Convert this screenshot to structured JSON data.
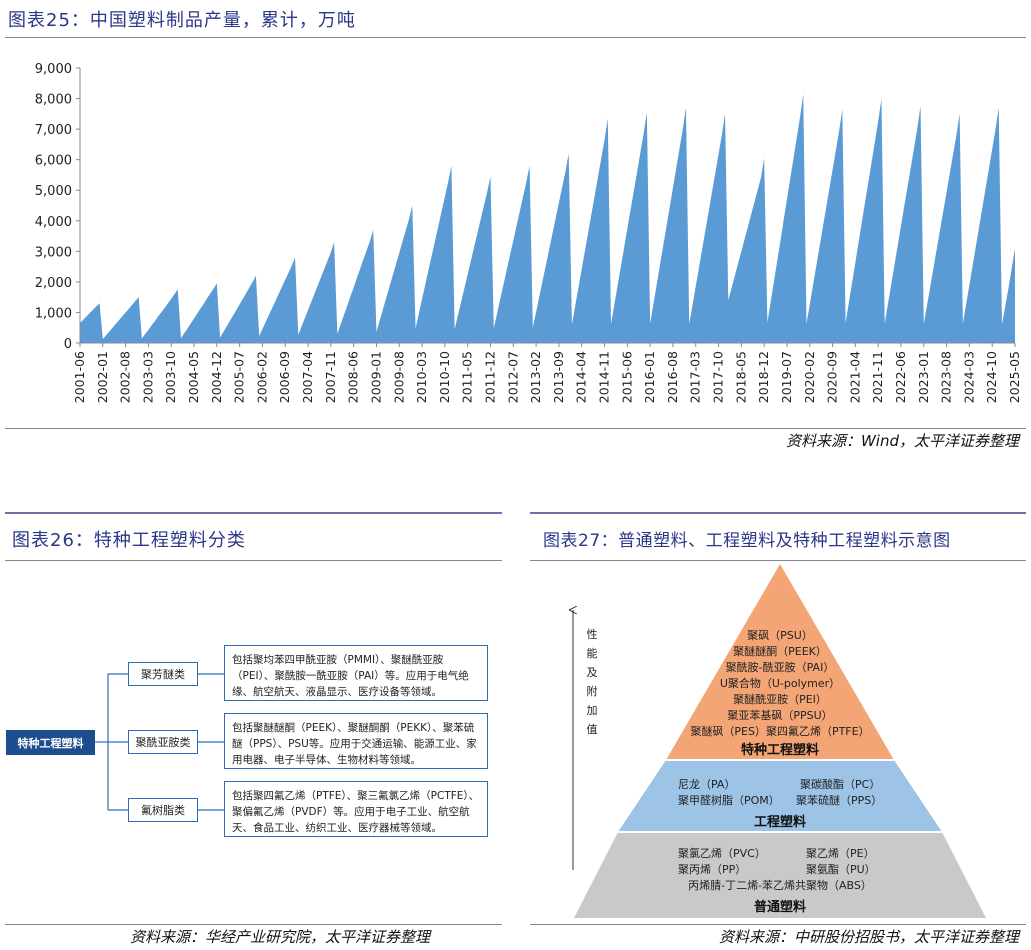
{
  "fig25": {
    "title": "图表25：中国塑料制品产量，累计，万吨",
    "source": "资料来源：Wind，太平洋证券整理"
  },
  "fig26": {
    "title": "图表26：特种工程塑料分类",
    "root": "特种工程塑料",
    "categories": [
      {
        "label": "聚芳醚类",
        "desc": "包括聚均苯四甲酰亚胺（PMMI）、聚醚酰亚胺（PEI）、聚酰胺一酰亚胺（PAI）等。应用于电气绝缘、航空航天、液晶显示、医疗设备等领域。"
      },
      {
        "label": "聚酰亚胺类",
        "desc": "包括聚醚醚酮（PEEK）、聚醚酮酮（PEKK）、聚苯硫醚（PPS）、PSU等。应用于交通运输、能源工业、家用电器、电子半导体、生物材料等领域。"
      },
      {
        "label": "氟树脂类",
        "desc": "包括聚四氟乙烯（PTFE）、聚三氟氯乙烯（PCTFE）、聚偏氟乙烯（PVDF）等。应用于电子工业、航空航天、食品工业、纺织工业、医疗器械等领域。"
      }
    ],
    "source": "资料来源：华经产业研究院，太平洋证券整理"
  },
  "fig27": {
    "title": "图表27：普通塑料、工程塑料及特种工程塑料示意图",
    "axis_label": "性能及附加值",
    "tiers": [
      {
        "name": "特种工程塑料",
        "color": "#f4a575",
        "items": [
          "聚砜（PSU）",
          "聚醚醚酮（PEEK）",
          "聚酰胺-酰亚胺（PAI）",
          "U聚合物（U-polymer）",
          "聚醚酰亚胺（PEI）",
          "聚亚苯基砜（PPSU）",
          "聚醚砜（PES）聚四氟乙烯（PTFE）"
        ]
      },
      {
        "name": "工程塑料",
        "color": "#9dc3e6",
        "items": [
          "尼龙（PA）",
          "聚碳酸酯（PC）",
          "聚甲醛树脂（POM）",
          "聚苯硫醚（PPS）"
        ]
      },
      {
        "name": "普通塑料",
        "color": "#c9c9c9",
        "items": [
          "聚氯乙烯（PVC）",
          "聚乙烯（PE）",
          "聚丙烯（PP）",
          "聚氨酯（PU）",
          "丙烯腈-丁二烯-苯乙烯共聚物（ABS）"
        ]
      }
    ],
    "source": "资料来源：中研股份招股书，太平洋证券整理"
  },
  "chart_data": {
    "type": "area",
    "title": "中国塑料制品产量，累计，万吨",
    "xlabel": "",
    "ylabel": "",
    "ylim": [
      0,
      9000
    ],
    "yticks": [
      0,
      1000,
      2000,
      3000,
      4000,
      5000,
      6000,
      7000,
      8000,
      9000
    ],
    "ytick_labels": [
      "0",
      "1,000",
      "2,000",
      "3,000",
      "4,000",
      "5,000",
      "6,000",
      "7,000",
      "8,000",
      "9,000"
    ],
    "xtick_labels": [
      "2001-06",
      "2002-01",
      "2002-08",
      "2003-03",
      "2003-10",
      "2004-05",
      "2004-12",
      "2005-07",
      "2006-02",
      "2006-09",
      "2007-04",
      "2007-11",
      "2008-06",
      "2009-01",
      "2009-08",
      "2010-03",
      "2010-10",
      "2011-05",
      "2011-12",
      "2012-07",
      "2013-02",
      "2013-09",
      "2014-04",
      "2014-11",
      "2015-06",
      "2016-01",
      "2016-08",
      "2017-03",
      "2017-10",
      "2018-05",
      "2018-12",
      "2019-07",
      "2020-02",
      "2020-09",
      "2021-04",
      "2021-11",
      "2022-06",
      "2023-01",
      "2023-08",
      "2024-03",
      "2024-10",
      "2025-05"
    ],
    "start": "2001-06",
    "annual_totals": {
      "2001": 1300,
      "2002": 1500,
      "2003": 1750,
      "2004": 1950,
      "2005": 2200,
      "2006": 2800,
      "2007": 3300,
      "2008": 3700,
      "2009": 4500,
      "2010": 5800,
      "2011": 5450,
      "2012": 5800,
      "2013": 6200,
      "2014": 7350,
      "2015": 7550,
      "2016": 7700,
      "2017": 7500,
      "2018": 6050,
      "2019": 8150,
      "2020": 7650,
      "2021": 8000,
      "2022": 7750,
      "2023": 7500,
      "2024": 7700
    },
    "series": [
      {
        "name": "中国塑料制品产量累计值",
        "color": "#5b9bd5",
        "values": [
          650,
          760,
          870,
          980,
          1090,
          1200,
          1300,
          130,
          250,
          380,
          500,
          630,
          750,
          880,
          1000,
          1120,
          1250,
          1380,
          1500,
          150,
          290,
          430,
          580,
          720,
          870,
          1010,
          1150,
          1300,
          1450,
          1600,
          1750,
          160,
          320,
          480,
          640,
          800,
          970,
          1130,
          1290,
          1460,
          1620,
          1780,
          1950,
          180,
          360,
          540,
          720,
          900,
          1080,
          1270,
          1450,
          1630,
          1820,
          2000,
          2200,
          230,
          460,
          690,
          920,
          1150,
          1380,
          1610,
          1840,
          2070,
          2300,
          2530,
          2800,
          270,
          540,
          810,
          1080,
          1350,
          1620,
          1890,
          2160,
          2430,
          2700,
          2970,
          3300,
          300,
          610,
          910,
          1210,
          1520,
          1820,
          2130,
          2430,
          2740,
          3040,
          3340,
          3700,
          370,
          740,
          1110,
          1480,
          1850,
          2210,
          2580,
          2950,
          3320,
          3690,
          4060,
          4500,
          480,
          960,
          1440,
          1920,
          2400,
          2880,
          3350,
          3830,
          4310,
          4790,
          5270,
          5800,
          450,
          900,
          1350,
          1800,
          2250,
          2700,
          3150,
          3600,
          4050,
          4500,
          4950,
          5450,
          480,
          960,
          1440,
          1920,
          2400,
          2880,
          3350,
          3830,
          4310,
          4790,
          5270,
          5800,
          510,
          1020,
          1530,
          2040,
          2550,
          3060,
          3570,
          4080,
          4590,
          5100,
          5610,
          6200,
          600,
          1210,
          1810,
          2420,
          3020,
          3620,
          4230,
          4830,
          5440,
          6040,
          6640,
          7350,
          620,
          1250,
          1870,
          2490,
          3110,
          3740,
          4360,
          4980,
          5600,
          6230,
          6850,
          7550,
          630,
          1270,
          1900,
          2540,
          3170,
          3810,
          4440,
          5080,
          5710,
          6350,
          6980,
          7700,
          620,
          1240,
          1850,
          2470,
          3090,
          3710,
          4320,
          4940,
          5560,
          6180,
          6790,
          7500,
          1400,
          1800,
          2200,
          2600,
          3000,
          3400,
          3800,
          4200,
          4600,
          5000,
          5400,
          6050,
          670,
          1340,
          2010,
          2680,
          3350,
          4030,
          4700,
          5370,
          6040,
          6710,
          7380,
          8150,
          630,
          1260,
          1890,
          2520,
          3150,
          3780,
          4410,
          5040,
          5670,
          6300,
          6930,
          7650,
          660,
          1320,
          1980,
          2640,
          3300,
          3960,
          4620,
          5270,
          5930,
          6590,
          7250,
          8000,
          640,
          1280,
          1910,
          2550,
          3190,
          3830,
          4470,
          5100,
          5740,
          6380,
          7020,
          7750,
          620,
          1240,
          1850,
          2470,
          3090,
          3710,
          4320,
          4940,
          5560,
          6180,
          6790,
          7500,
          630,
          1270,
          1900,
          2540,
          3170,
          3810,
          4440,
          5080,
          5710,
          6350,
          6980,
          7700,
          600,
          1200,
          1800,
          2450,
          3100
        ]
      }
    ]
  }
}
